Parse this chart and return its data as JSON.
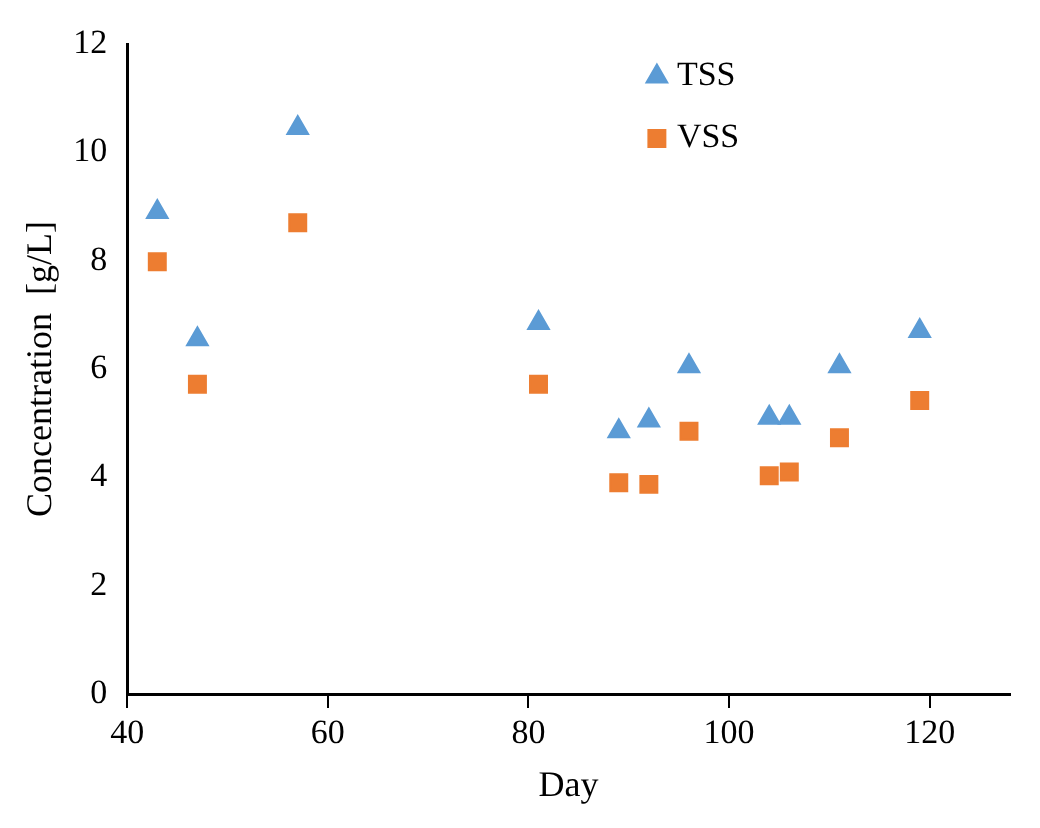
{
  "chart_data": {
    "type": "scatter",
    "xlabel": "Day",
    "ylabel": "Concentration  [g/L]",
    "xlim": [
      40,
      128
    ],
    "xticks": [
      40,
      60,
      80,
      100,
      120
    ],
    "ylim": [
      0,
      12
    ],
    "yticks": [
      0,
      2,
      4,
      6,
      8,
      10,
      12
    ],
    "grid": false,
    "legend": "top right",
    "x": [
      43,
      47,
      57,
      81,
      89,
      92,
      96,
      104,
      106,
      111,
      119
    ],
    "series": [
      {
        "name": "TSS",
        "color": "#5b9bd5",
        "marker": "triangle",
        "values": [
          8.9,
          6.55,
          10.45,
          6.85,
          4.85,
          5.05,
          6.05,
          5.1,
          5.1,
          6.05,
          6.7
        ]
      },
      {
        "name": "VSS",
        "color": "#ed7d31",
        "marker": "square",
        "values": [
          7.98,
          5.72,
          8.7,
          5.72,
          3.9,
          3.87,
          4.85,
          4.03,
          4.1,
          4.73,
          5.42
        ]
      }
    ]
  }
}
